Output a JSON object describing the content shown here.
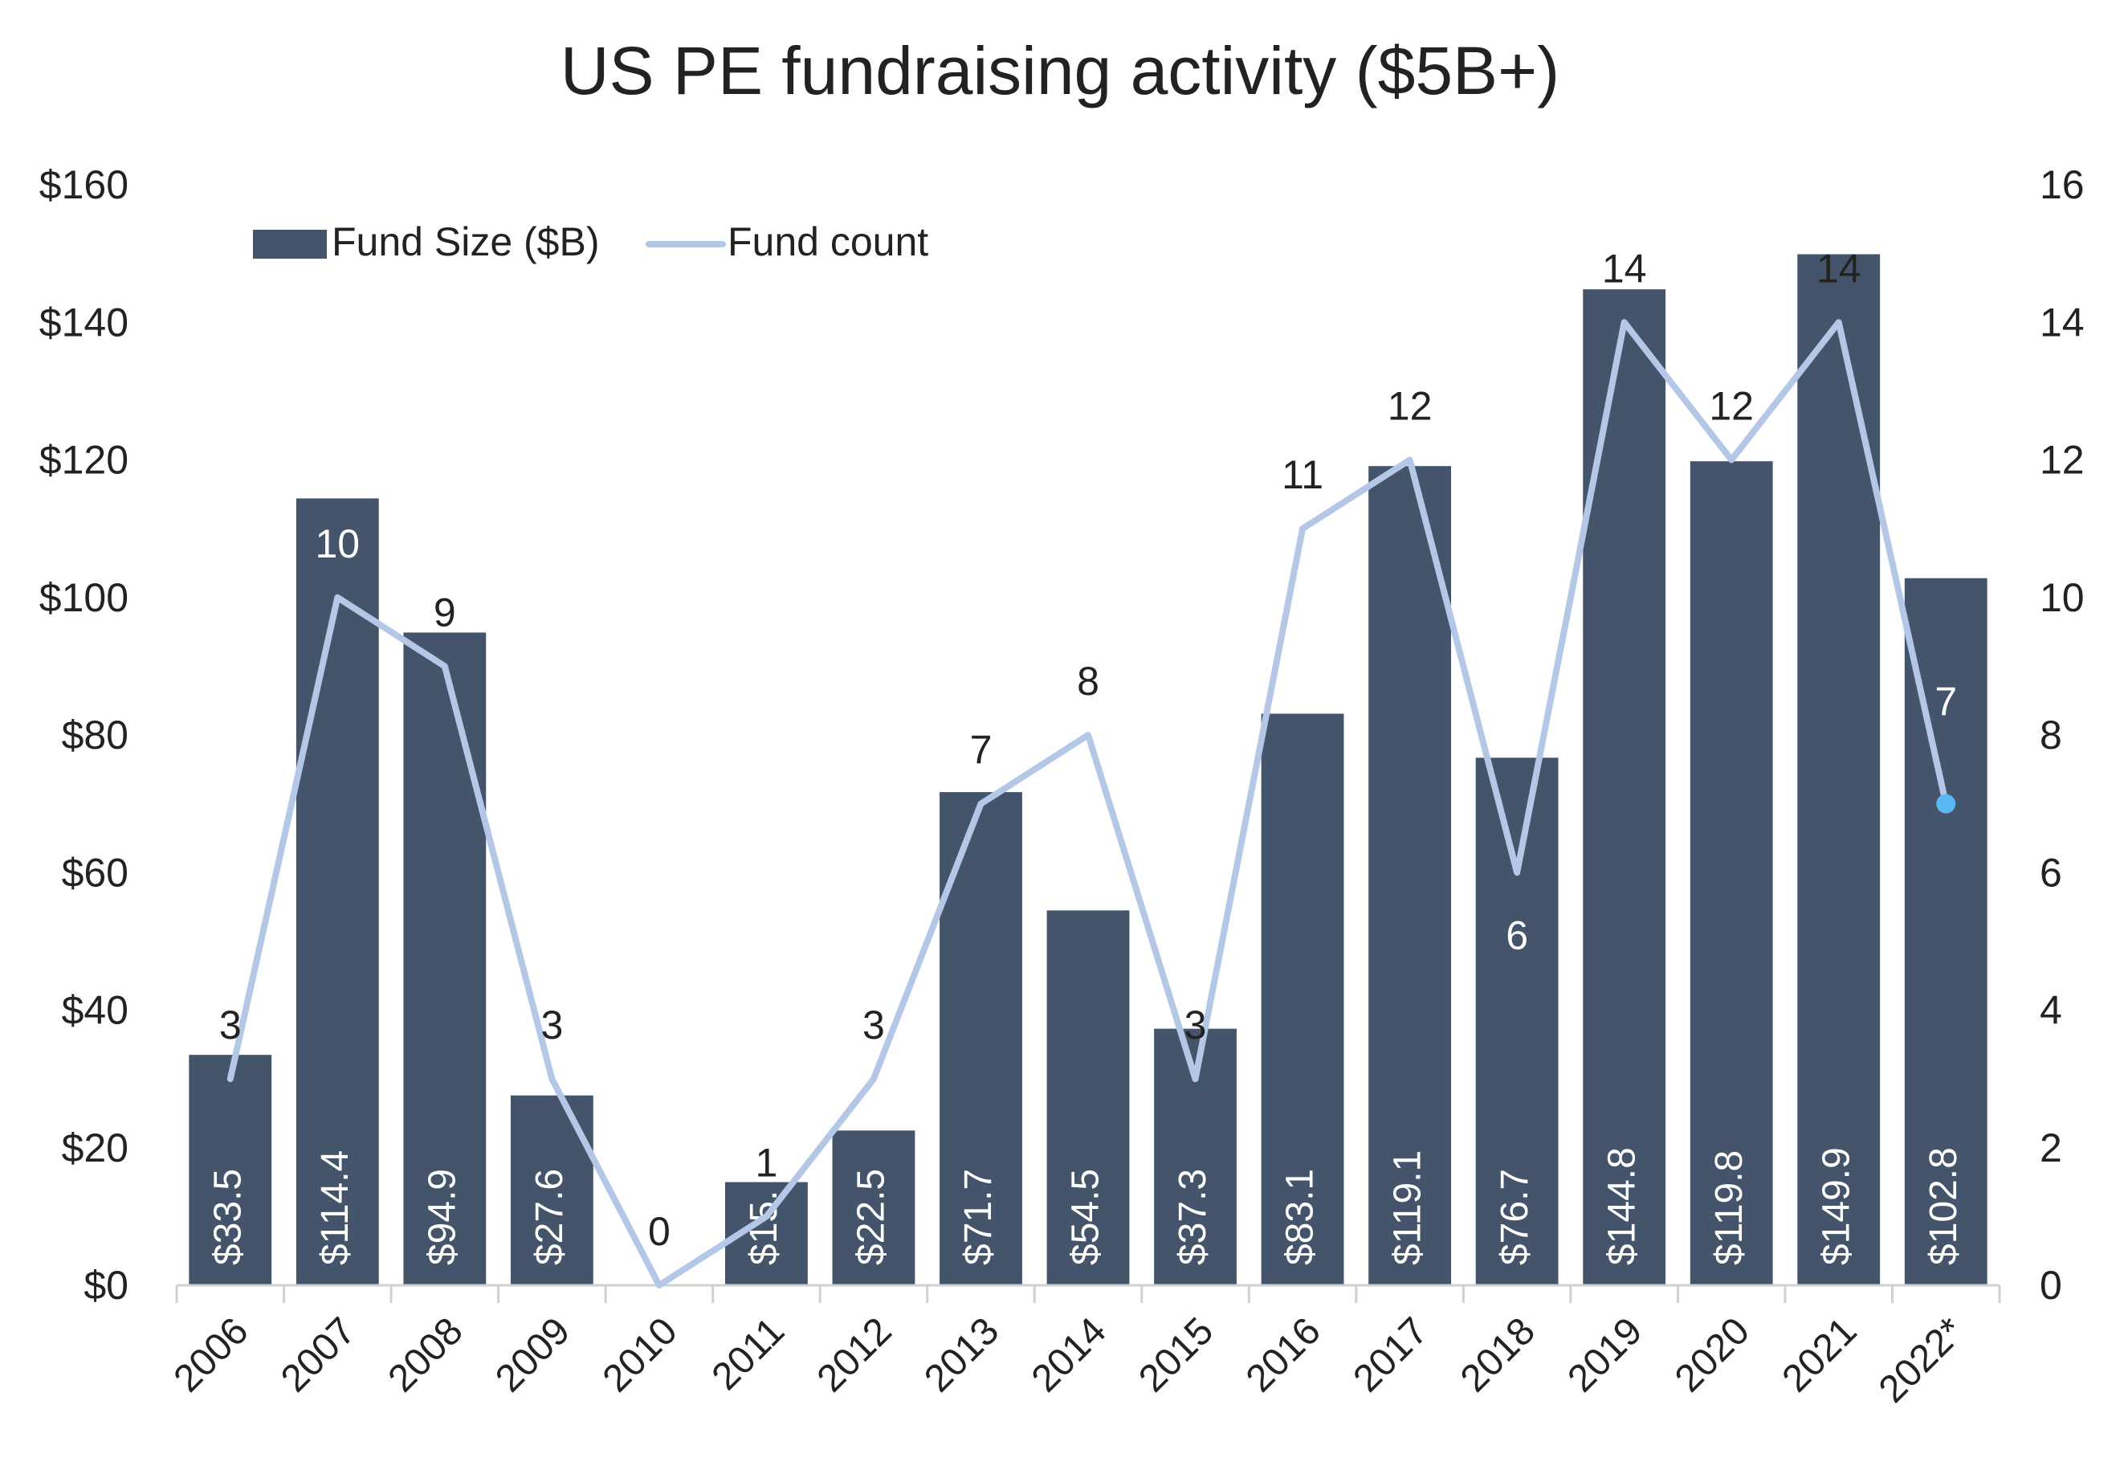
{
  "colors": {
    "bar": "#44546A",
    "line": "#B4C7E7",
    "last_marker": "#5BB8F0",
    "axis": "#D0D0D0",
    "text": "#222222",
    "bar_label": "#FFFFFF"
  },
  "chart_data": {
    "type": "bar",
    "title": "US PE fundraising activity ($5B+)",
    "xlabel": "",
    "ylabel": "",
    "categories": [
      "2006",
      "2007",
      "2008",
      "2009",
      "2010",
      "2011",
      "2012",
      "2013",
      "2014",
      "2015",
      "2016",
      "2017",
      "2018",
      "2019",
      "2020",
      "2021",
      "2022*"
    ],
    "series": [
      {
        "name": "Fund Size ($B)",
        "type": "bar",
        "axis": "left",
        "values": [
          33.5,
          114.4,
          94.9,
          27.6,
          0,
          15,
          22.5,
          71.7,
          54.5,
          37.3,
          83.1,
          119.1,
          76.7,
          144.8,
          119.8,
          149.9,
          102.8
        ],
        "labels": [
          "$33.5",
          "$114.4",
          "$94.9",
          "$27.6",
          "",
          "$15.",
          "$22.5",
          "$71.7",
          "$54.5",
          "$37.3",
          "$83.1",
          "$119.1",
          "$76.7",
          "$144.8",
          "$119.8",
          "$149.9",
          "$102.8"
        ]
      },
      {
        "name": "Fund count",
        "type": "line",
        "axis": "right",
        "values": [
          3,
          10,
          9,
          3,
          0,
          1,
          3,
          7,
          8,
          3,
          11,
          12,
          6,
          14,
          12,
          14,
          7
        ],
        "labels": [
          "3",
          "10",
          "9",
          "3",
          "0",
          "1",
          "3",
          "7",
          "8",
          "3",
          "11",
          "12",
          "6",
          "14",
          "12",
          "14",
          "7"
        ]
      }
    ],
    "y_left": {
      "lim": [
        0,
        160
      ],
      "ticks": [
        "$0",
        "$20",
        "$40",
        "$60",
        "$80",
        "$100",
        "$120",
        "$140",
        "$160"
      ]
    },
    "y_right": {
      "lim": [
        0,
        16
      ],
      "ticks": [
        "0",
        "2",
        "4",
        "6",
        "8",
        "10",
        "12",
        "14",
        "16"
      ]
    },
    "grid": false,
    "legend_position": "top-left"
  }
}
